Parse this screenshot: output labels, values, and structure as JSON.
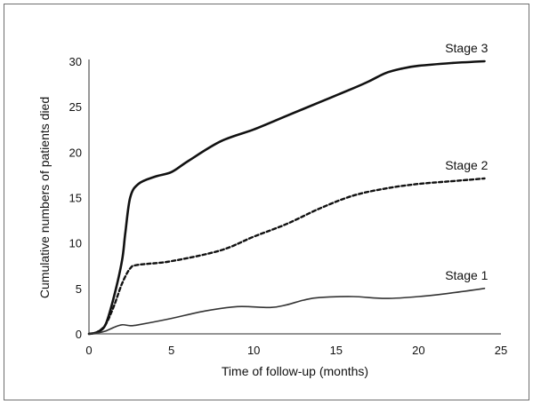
{
  "chart_data": {
    "type": "line",
    "title": "",
    "xlabel": "Time of follow-up (months)",
    "ylabel": "Cumulative numbers of patients died",
    "xlim": [
      0,
      25
    ],
    "ylim": [
      0,
      30
    ],
    "xticks": [
      "0",
      "5",
      "10",
      "15",
      "20",
      "25"
    ],
    "yticks": [
      "0",
      "5",
      "10",
      "15",
      "20",
      "25",
      "30"
    ],
    "grid": false,
    "legend": "none",
    "series": [
      {
        "name": "Stage 3",
        "style": "solid-thick",
        "color": "#111111",
        "x": [
          0,
          0.5,
          1,
          1.5,
          2,
          2.2,
          2.5,
          3,
          4,
          5,
          6,
          8,
          10,
          12,
          14,
          16,
          17,
          18,
          19,
          20,
          22,
          24
        ],
        "y": [
          0,
          0.2,
          1,
          4,
          8,
          11,
          15,
          16.5,
          17.3,
          17.8,
          19,
          21.2,
          22.5,
          24,
          25.5,
          27,
          27.8,
          28.7,
          29.2,
          29.5,
          29.8,
          30
        ]
      },
      {
        "name": "Stage 2",
        "style": "dashed",
        "color": "#111111",
        "x": [
          0,
          0.5,
          1,
          1.5,
          2,
          2.5,
          3,
          5,
          8,
          10,
          12,
          14,
          16,
          18,
          20,
          22,
          24
        ],
        "y": [
          0,
          0.2,
          1,
          3,
          5.5,
          7.2,
          7.6,
          8,
          9.2,
          10.7,
          12.1,
          13.8,
          15.2,
          16,
          16.5,
          16.8,
          17.1
        ]
      },
      {
        "name": "Stage 1",
        "style": "solid-thin",
        "color": "#333333",
        "x": [
          0,
          0.5,
          1,
          1.5,
          2,
          2.5,
          3,
          5,
          7,
          9,
          11,
          12,
          13,
          14,
          16,
          18,
          20,
          22,
          24
        ],
        "y": [
          0,
          0.1,
          0.3,
          0.7,
          1,
          0.9,
          1,
          1.7,
          2.5,
          3,
          2.9,
          3.2,
          3.7,
          4,
          4.1,
          3.9,
          4.1,
          4.5,
          5
        ]
      }
    ]
  }
}
